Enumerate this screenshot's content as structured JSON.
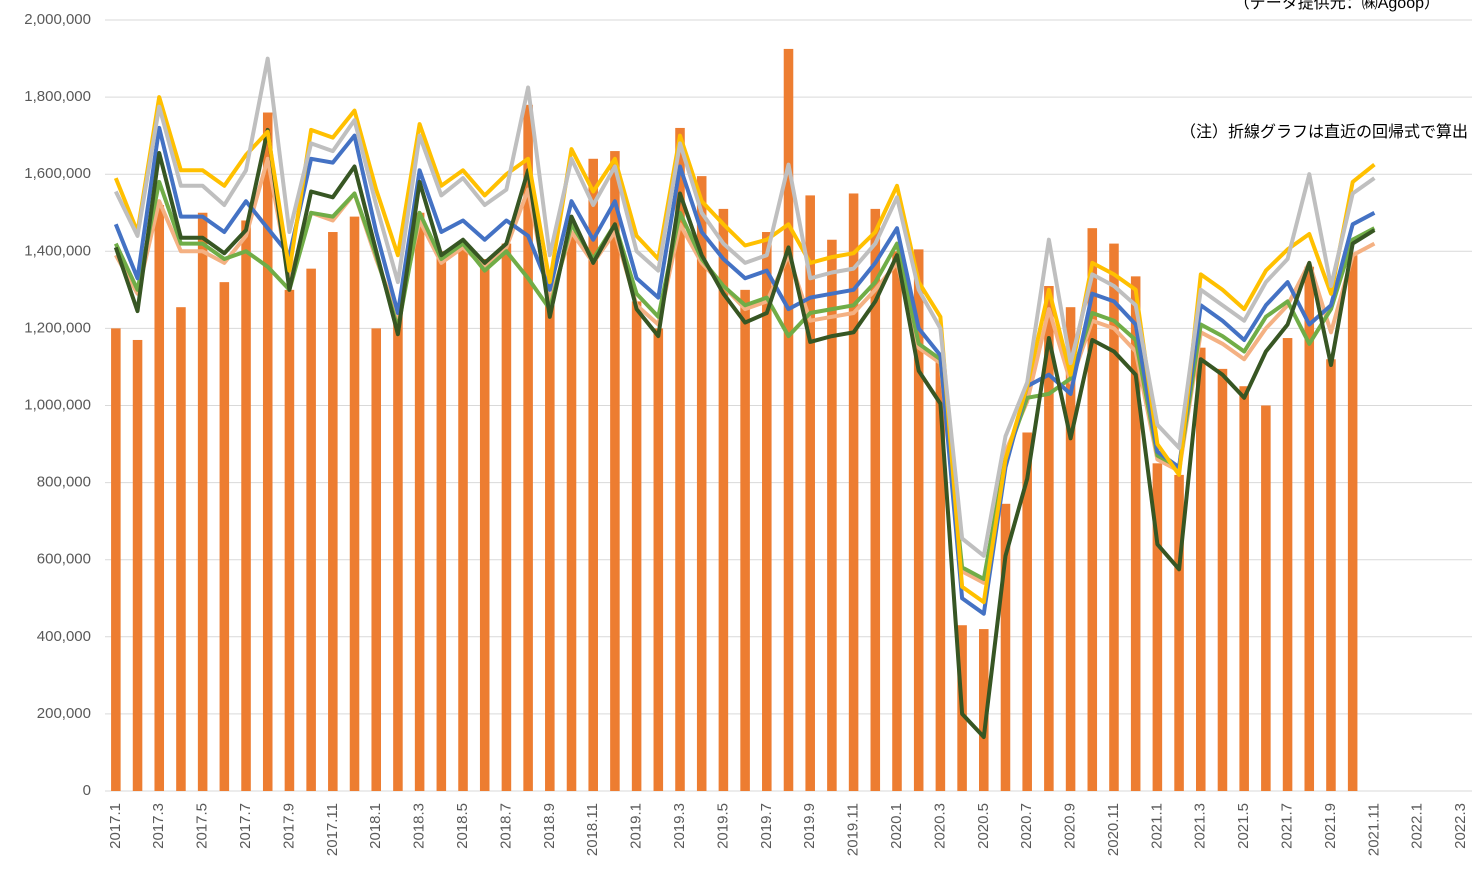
{
  "chart_data": {
    "type": "bar",
    "annotations": [
      "（データ提供元：㈱Agoop）",
      "（注）折線グラフは直近の回帰式で算出"
    ],
    "categories": [
      "2017.1",
      null,
      "2017.3",
      null,
      "2017.5",
      null,
      "2017.7",
      null,
      "2017.9",
      null,
      "2017.11",
      null,
      "2018.1",
      null,
      "2018.3",
      null,
      "2018.5",
      null,
      "2018.7",
      null,
      "2018.9",
      null,
      "2018.11",
      null,
      "2019.1",
      null,
      "2019.3",
      null,
      "2019.5",
      null,
      "2019.7",
      null,
      "2019.9",
      null,
      "2019.11",
      null,
      "2020.1",
      null,
      "2020.3",
      null,
      "2020.5",
      null,
      "2020.7",
      null,
      "2020.9",
      null,
      "2020.11",
      null,
      "2021.1",
      null,
      "2021.3",
      null,
      "2021.5",
      null,
      "2021.7",
      null,
      "2021.9",
      null,
      "2021.11",
      null,
      "2022.1",
      null,
      "2022.3"
    ],
    "color": "#ed7d31",
    "values": [
      1200000,
      1170000,
      1520000,
      1255000,
      1500000,
      1320000,
      1480000,
      1760000,
      1300000,
      1355000,
      1450000,
      1490000,
      1200000,
      1250000,
      1500000,
      1400000,
      1420000,
      1380000,
      1420000,
      1780000,
      1260000,
      1450000,
      1640000,
      1660000,
      1270000,
      1200000,
      1720000,
      1595000,
      1510000,
      1300000,
      1450000,
      1925000,
      1545000,
      1430000,
      1550000,
      1510000,
      1400000,
      1405000,
      1130000,
      430000,
      420000,
      745000,
      930000,
      1310000,
      1255000,
      1460000,
      1420000,
      1335000,
      850000,
      820000,
      1150000,
      1095000,
      1050000,
      1000000,
      1175000,
      1360000,
      1120000,
      1390000,
      null,
      null,
      null,
      null,
      null
    ],
    "series": [
      {
        "color": "#f4b183",
        "values": [
          1390000,
          1290000,
          1530000,
          1400000,
          1400000,
          1370000,
          1440000,
          1640000,
          1330000,
          1500000,
          1480000,
          1550000,
          1380000,
          1230000,
          1480000,
          1370000,
          1410000,
          1360000,
          1410000,
          1560000,
          1270000,
          1450000,
          1370000,
          1450000,
          1260000,
          1210000,
          1470000,
          1370000,
          1310000,
          1250000,
          1270000,
          1390000,
          1220000,
          1230000,
          1240000,
          1300000,
          1370000,
          1150000,
          1110000,
          570000,
          540000,
          880000,
          1010000,
          1250000,
          1060000,
          1220000,
          1200000,
          1140000,
          860000,
          830000,
          1190000,
          1160000,
          1120000,
          1200000,
          1260000,
          1370000,
          1190000,
          1390000,
          1420000,
          null,
          null,
          null,
          null
        ]
      },
      {
        "color": "#70ad47",
        "values": [
          1420000,
          1300000,
          1580000,
          1420000,
          1420000,
          1380000,
          1400000,
          1360000,
          1300000,
          1500000,
          1490000,
          1550000,
          1390000,
          1200000,
          1500000,
          1380000,
          1420000,
          1350000,
          1400000,
          1330000,
          1250000,
          1470000,
          1380000,
          1470000,
          1290000,
          1230000,
          1500000,
          1380000,
          1310000,
          1260000,
          1280000,
          1180000,
          1240000,
          1250000,
          1260000,
          1320000,
          1420000,
          1160000,
          1120000,
          580000,
          550000,
          860000,
          1020000,
          1030000,
          1070000,
          1240000,
          1220000,
          1170000,
          870000,
          840000,
          1210000,
          1180000,
          1140000,
          1230000,
          1270000,
          1160000,
          1250000,
          1430000,
          1460000,
          null,
          null,
          null,
          null
        ]
      },
      {
        "color": "#4472c4",
        "values": [
          1470000,
          1330000,
          1720000,
          1490000,
          1490000,
          1450000,
          1530000,
          1460000,
          1390000,
          1640000,
          1630000,
          1700000,
          1450000,
          1240000,
          1610000,
          1450000,
          1480000,
          1430000,
          1480000,
          1440000,
          1300000,
          1530000,
          1430000,
          1530000,
          1330000,
          1280000,
          1620000,
          1450000,
          1380000,
          1330000,
          1350000,
          1250000,
          1280000,
          1290000,
          1300000,
          1370000,
          1460000,
          1200000,
          1130000,
          500000,
          460000,
          840000,
          1050000,
          1080000,
          1030000,
          1290000,
          1270000,
          1210000,
          880000,
          840000,
          1260000,
          1220000,
          1170000,
          1260000,
          1320000,
          1210000,
          1260000,
          1470000,
          1500000,
          null,
          null,
          null,
          null
        ]
      },
      {
        "color": "#375623",
        "values": [
          1410000,
          1245000,
          1655000,
          1435000,
          1435000,
          1395000,
          1455000,
          1715000,
          1300000,
          1555000,
          1540000,
          1620000,
          1400000,
          1185000,
          1580000,
          1390000,
          1430000,
          1370000,
          1420000,
          1610000,
          1230000,
          1490000,
          1370000,
          1470000,
          1250000,
          1180000,
          1550000,
          1390000,
          1290000,
          1215000,
          1240000,
          1410000,
          1165000,
          1180000,
          1190000,
          1270000,
          1390000,
          1090000,
          1005000,
          200000,
          140000,
          610000,
          810000,
          1175000,
          915000,
          1170000,
          1140000,
          1080000,
          640000,
          575000,
          1120000,
          1080000,
          1020000,
          1140000,
          1210000,
          1370000,
          1105000,
          1420000,
          1455000,
          null,
          null,
          null,
          null
        ]
      },
      {
        "color": "#ffc000",
        "values": [
          1590000,
          1450000,
          1800000,
          1610000,
          1610000,
          1570000,
          1650000,
          1710000,
          1350000,
          1715000,
          1695000,
          1765000,
          1560000,
          1390000,
          1730000,
          1570000,
          1610000,
          1545000,
          1600000,
          1640000,
          1320000,
          1665000,
          1555000,
          1640000,
          1440000,
          1380000,
          1700000,
          1530000,
          1470000,
          1415000,
          1430000,
          1470000,
          1370000,
          1385000,
          1395000,
          1450000,
          1570000,
          1320000,
          1230000,
          530000,
          490000,
          860000,
          1050000,
          1300000,
          1080000,
          1370000,
          1340000,
          1300000,
          900000,
          820000,
          1340000,
          1300000,
          1250000,
          1350000,
          1405000,
          1445000,
          1290000,
          1580000,
          1625000,
          null,
          null,
          null,
          null
        ]
      },
      {
        "color": "#bfbfbf",
        "values": [
          1555000,
          1440000,
          1775000,
          1570000,
          1570000,
          1520000,
          1610000,
          1900000,
          1450000,
          1680000,
          1660000,
          1740000,
          1520000,
          1320000,
          1700000,
          1545000,
          1590000,
          1520000,
          1560000,
          1825000,
          1390000,
          1640000,
          1520000,
          1620000,
          1400000,
          1350000,
          1680000,
          1500000,
          1420000,
          1370000,
          1390000,
          1625000,
          1330000,
          1345000,
          1355000,
          1420000,
          1540000,
          1300000,
          1200000,
          655000,
          610000,
          920000,
          1060000,
          1430000,
          1110000,
          1340000,
          1310000,
          1260000,
          950000,
          890000,
          1300000,
          1260000,
          1220000,
          1320000,
          1380000,
          1600000,
          1310000,
          1550000,
          1590000,
          null,
          null,
          null,
          null
        ]
      }
    ],
    "ylim": [
      0,
      2000000
    ],
    "yticks": [
      0,
      {
        "value": 200000,
        "label": "200,000"
      },
      {
        "value": 400000,
        "label": "400,000"
      },
      {
        "value": 600000,
        "label": "600,000"
      },
      {
        "value": 800000,
        "label": "800,000"
      },
      {
        "value": 1000000,
        "label": "1,000,000"
      },
      {
        "value": 1200000,
        "label": "1,200,000"
      },
      {
        "value": 1400000,
        "label": "1,400,000"
      },
      {
        "value": 1600000,
        "label": "1,600,000"
      },
      {
        "value": 1800000,
        "label": "1,800,000"
      },
      {
        "value": 2000000,
        "label": "2,000,000"
      }
    ],
    "grid": true
  }
}
